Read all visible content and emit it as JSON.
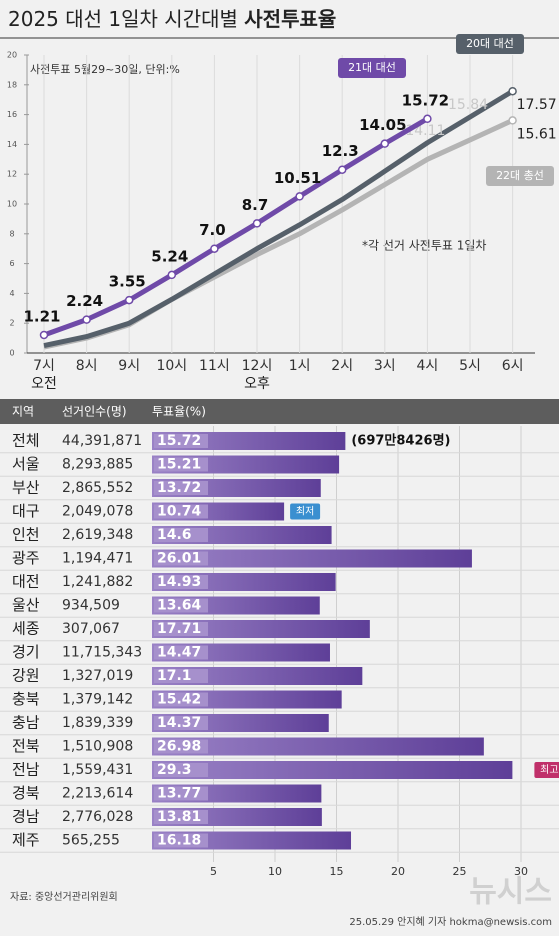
{
  "title": "2025 대선 1일차 시간대별",
  "title_bold": "사전투표율",
  "chart_data": [
    {
      "type": "line",
      "subtitle": "사전투표 5월29~30일, 단위:%",
      "note": "*각 선거 사전투표 1일차",
      "categories": [
        "7시",
        "8시",
        "9시",
        "10시",
        "11시",
        "12시",
        "1시",
        "2시",
        "3시",
        "4시",
        "5시",
        "6시"
      ],
      "category_sublabels": [
        "오전",
        null,
        null,
        null,
        null,
        "오후",
        null,
        null,
        null,
        null,
        null,
        null
      ],
      "ylim": [
        0,
        20
      ],
      "yticks": [
        0,
        2,
        4,
        6,
        8,
        10,
        12,
        14,
        16,
        18,
        20
      ],
      "grid": true,
      "series": [
        {
          "name": "22대 총선",
          "color": "#b4b4b4",
          "values": [
            0.4,
            1.0,
            1.9,
            3.6,
            5.1,
            6.6,
            8.0,
            9.6,
            11.3,
            13.0,
            14.3,
            15.61
          ],
          "value_labels": [
            null,
            null,
            null,
            null,
            null,
            null,
            null,
            null,
            null,
            null,
            null,
            "15.61"
          ]
        },
        {
          "name": "20대 대선",
          "color": "#56606a",
          "values": [
            0.5,
            1.1,
            2.0,
            3.6,
            5.3,
            7.0,
            8.6,
            10.3,
            12.2,
            14.11,
            15.84,
            17.57
          ],
          "value_labels": [
            null,
            null,
            null,
            null,
            null,
            null,
            null,
            null,
            null,
            "14.11",
            "15.84",
            "17.57"
          ]
        },
        {
          "name": "21대 대선",
          "color": "#6f4aa8",
          "values": [
            1.21,
            2.24,
            3.55,
            5.24,
            7.0,
            8.7,
            10.51,
            12.3,
            14.05,
            15.72,
            null,
            null
          ],
          "value_labels": [
            "1.21",
            "2.24",
            "3.55",
            "5.24",
            "7.0",
            "8.7",
            "10.51",
            "12.3",
            "14.05",
            "15.72",
            null,
            null
          ]
        }
      ]
    },
    {
      "type": "bar",
      "columns": [
        "지역",
        "선거인수(명)",
        "투표율(%)"
      ],
      "categories": [
        "전체",
        "서울",
        "부산",
        "대구",
        "인천",
        "광주",
        "대전",
        "울산",
        "세종",
        "경기",
        "강원",
        "충북",
        "충남",
        "전북",
        "전남",
        "경북",
        "경남",
        "제주"
      ],
      "electorate": [
        "44,391,871",
        "8,293,885",
        "2,865,552",
        "2,049,078",
        "2,619,348",
        "1,194,471",
        "1,241,882",
        "934,509",
        "307,067",
        "11,715,343",
        "1,327,019",
        "1,379,142",
        "1,839,339",
        "1,510,908",
        "1,559,431",
        "2,213,614",
        "2,776,028",
        "565,255"
      ],
      "values": [
        15.72,
        15.21,
        13.72,
        10.74,
        14.6,
        26.01,
        14.93,
        13.64,
        17.71,
        14.47,
        17.1,
        15.42,
        14.37,
        26.98,
        29.3,
        13.77,
        13.81,
        16.18
      ],
      "color": "#7a5aae",
      "xlim": [
        0,
        30
      ],
      "xticks": [
        5,
        10,
        15,
        20,
        25,
        30
      ],
      "total_note": "(697만8426명)",
      "lowest_label": "최저",
      "highest_label": "최고"
    }
  ],
  "footer": {
    "source": "자료: 중앙선거관리위원회",
    "credit": "25.05.29 안지혜 기자 hokma@newsis.com",
    "logo": "뉴시스"
  }
}
